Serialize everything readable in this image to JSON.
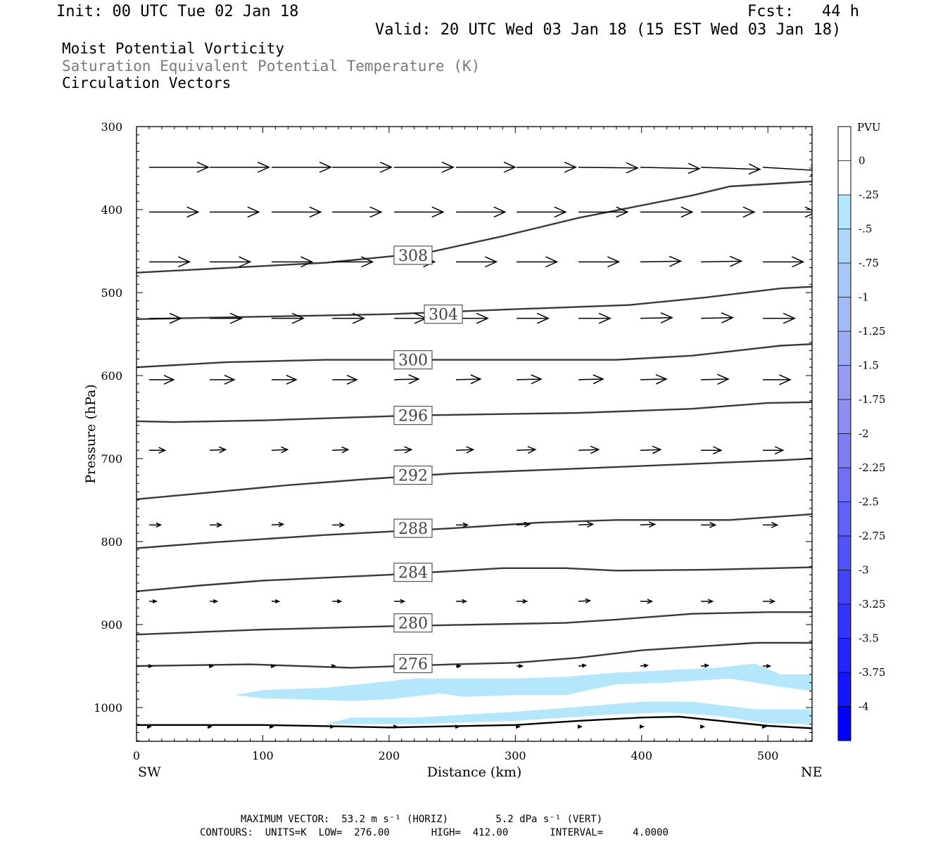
{
  "header": {
    "init": "Init: 00 UTC Tue 02 Jan 18",
    "fcst": "Fcst:   44 h",
    "valid": "Valid: 20 UTC Wed 03 Jan 18 (15 EST Wed 03 Jan 18)"
  },
  "fields": [
    {
      "label": "Moist Potential Vorticity",
      "color": "#000000"
    },
    {
      "label": "Saturation Equivalent Potential Temperature (K)",
      "color": "#7a7a7a"
    },
    {
      "label": "Circulation Vectors",
      "color": "#000000"
    }
  ],
  "footer": {
    "max_vector": "MAXIMUM VECTOR:  53.2 m s⁻¹ (HORIZ)        5.2 dPa s⁻¹ (VERT)",
    "contours": "CONTOURS:  UNITS=K  LOW=  276.00       HIGH=  412.00       INTERVAL=     4.0000"
  },
  "chart_data": {
    "type": "cross-section",
    "xlabel": "Distance (km)",
    "ylabel": "Pressure (hPa)",
    "xlim": [
      0,
      535
    ],
    "ylim": [
      1040,
      300
    ],
    "x_ticks": [
      "0",
      "100",
      "200",
      "300",
      "400",
      "500"
    ],
    "y_ticks": [
      "300",
      "400",
      "500",
      "600",
      "700",
      "800",
      "900",
      "1000"
    ],
    "x_end_labels": {
      "left": "SW",
      "right": "NE"
    },
    "colorbar": {
      "title": "PVU",
      "labels": [
        "0",
        "-.25",
        "-.5",
        "-.75",
        "-1",
        "-1.25",
        "-1.5",
        "-1.75",
        "-2",
        "-2.25",
        "-2.5",
        "-2.75",
        "-3",
        "-3.25",
        "-3.5",
        "-3.75",
        "-4"
      ],
      "colors": [
        "#ffffff",
        "#ffffff",
        "#b4e6fc",
        "#aed7fa",
        "#a8c9f8",
        "#a2baf6",
        "#9cabf4",
        "#969cf2",
        "#8e8ef2",
        "#7f7ff4",
        "#7070f5",
        "#6161f6",
        "#5252f8",
        "#4343f9",
        "#3434fa",
        "#2525fb",
        "#1616fd",
        "#0000ff"
      ]
    },
    "theta_es_contours": [
      {
        "level": "308",
        "label_at": [
          219,
          455
        ],
        "points": [
          [
            0,
            476
          ],
          [
            150,
            464
          ],
          [
            230,
            452
          ],
          [
            290,
            432
          ],
          [
            350,
            410
          ],
          [
            440,
            383
          ],
          [
            470,
            372
          ],
          [
            535,
            366
          ]
        ]
      },
      {
        "level": "304",
        "label_at": [
          243,
          526
        ],
        "points": [
          [
            0,
            532
          ],
          [
            100,
            529
          ],
          [
            200,
            526
          ],
          [
            300,
            520
          ],
          [
            390,
            515
          ],
          [
            450,
            506
          ],
          [
            510,
            495
          ],
          [
            535,
            493
          ]
        ]
      },
      {
        "level": "300",
        "label_at": [
          219,
          581
        ],
        "points": [
          [
            0,
            590
          ],
          [
            70,
            584
          ],
          [
            150,
            581
          ],
          [
            250,
            581
          ],
          [
            380,
            581
          ],
          [
            440,
            576
          ],
          [
            510,
            564
          ],
          [
            535,
            562
          ]
        ]
      },
      {
        "level": "296",
        "label_at": [
          219,
          648
        ],
        "points": [
          [
            0,
            655
          ],
          [
            30,
            656
          ],
          [
            100,
            654
          ],
          [
            220,
            648
          ],
          [
            350,
            645
          ],
          [
            440,
            640
          ],
          [
            500,
            633
          ],
          [
            535,
            632
          ]
        ]
      },
      {
        "level": "292",
        "label_at": [
          219,
          720
        ],
        "points": [
          [
            0,
            749
          ],
          [
            50,
            742
          ],
          [
            120,
            732
          ],
          [
            180,
            725
          ],
          [
            250,
            718
          ],
          [
            350,
            712
          ],
          [
            430,
            707
          ],
          [
            510,
            702
          ],
          [
            535,
            700
          ]
        ]
      },
      {
        "level": "288",
        "label_at": [
          219,
          784
        ],
        "points": [
          [
            0,
            808
          ],
          [
            60,
            801
          ],
          [
            150,
            792
          ],
          [
            250,
            784
          ],
          [
            320,
            777
          ],
          [
            380,
            774
          ],
          [
            470,
            774
          ],
          [
            535,
            767
          ]
        ]
      },
      {
        "level": "284",
        "label_at": [
          219,
          837
        ],
        "points": [
          [
            0,
            860
          ],
          [
            50,
            853
          ],
          [
            100,
            847
          ],
          [
            200,
            840
          ],
          [
            290,
            832
          ],
          [
            340,
            832
          ],
          [
            380,
            835
          ],
          [
            450,
            834
          ],
          [
            535,
            831
          ]
        ]
      },
      {
        "level": "280",
        "label_at": [
          219,
          898
        ],
        "points": [
          [
            0,
            912
          ],
          [
            100,
            906
          ],
          [
            200,
            902
          ],
          [
            340,
            898
          ],
          [
            380,
            894
          ],
          [
            440,
            887
          ],
          [
            500,
            885
          ],
          [
            535,
            885
          ]
        ]
      },
      {
        "level": "276",
        "label_at": [
          219,
          947
        ],
        "points": [
          [
            0,
            950
          ],
          [
            90,
            948
          ],
          [
            170,
            952
          ],
          [
            250,
            948
          ],
          [
            300,
            946
          ],
          [
            350,
            940
          ],
          [
            400,
            931
          ],
          [
            450,
            926
          ],
          [
            490,
            922
          ],
          [
            535,
            922
          ]
        ]
      },
      {
        "level": "",
        "label_at": null,
        "points": [
          [
            0,
            1021
          ],
          [
            100,
            1021
          ],
          [
            170,
            1023
          ],
          [
            200,
            1024
          ],
          [
            300,
            1021
          ],
          [
            350,
            1016
          ],
          [
            400,
            1012
          ],
          [
            430,
            1011
          ],
          [
            500,
            1022
          ],
          [
            535,
            1025
          ]
        ]
      }
    ],
    "mpv_negative_regions": [
      {
        "value": "-.25",
        "points": [
          [
            78,
            985
          ],
          [
            100,
            979
          ],
          [
            150,
            976
          ],
          [
            220,
            965
          ],
          [
            300,
            965
          ],
          [
            340,
            963
          ],
          [
            380,
            958
          ],
          [
            420,
            955
          ],
          [
            460,
            952
          ],
          [
            490,
            947
          ],
          [
            510,
            960
          ],
          [
            535,
            960
          ],
          [
            535,
            980
          ],
          [
            510,
            975
          ],
          [
            470,
            965
          ],
          [
            420,
            970
          ],
          [
            380,
            972
          ],
          [
            340,
            985
          ],
          [
            300,
            985
          ],
          [
            260,
            987
          ],
          [
            240,
            983
          ],
          [
            200,
            990
          ],
          [
            170,
            992
          ],
          [
            130,
            990
          ],
          [
            100,
            989
          ]
        ]
      },
      {
        "value": "-.25",
        "points": [
          [
            150,
            1020
          ],
          [
            170,
            1012
          ],
          [
            220,
            1012
          ],
          [
            300,
            1005
          ],
          [
            360,
            998
          ],
          [
            400,
            993
          ],
          [
            440,
            993
          ],
          [
            490,
            1002
          ],
          [
            535,
            1002
          ],
          [
            535,
            1020
          ],
          [
            500,
            1019
          ],
          [
            460,
            1010
          ],
          [
            420,
            1006
          ],
          [
            380,
            1008
          ],
          [
            340,
            1012
          ],
          [
            300,
            1016
          ],
          [
            220,
            1020
          ]
        ]
      }
    ],
    "circulation_vectors": {
      "x": [
        10,
        58,
        107,
        155,
        204,
        253,
        301,
        350,
        399,
        447,
        496
      ],
      "rows": [
        {
          "pressure": 349,
          "u": [
            41,
            41,
            41,
            41,
            41,
            41,
            41,
            41,
            41,
            41,
            41
          ],
          "w": [
            0,
            0,
            0,
            0,
            0,
            0,
            0,
            1,
            2,
            3,
            5
          ]
        },
        {
          "pressure": 403,
          "u": [
            34,
            34,
            34,
            34,
            34,
            34,
            34,
            34,
            36,
            37,
            37
          ],
          "w": [
            0,
            0,
            0,
            0,
            0,
            0,
            0,
            0,
            0,
            0,
            0
          ]
        },
        {
          "pressure": 463,
          "u": [
            28,
            28,
            28,
            28,
            28,
            28,
            28,
            28,
            28,
            28,
            28
          ],
          "w": [
            0,
            0,
            0,
            0,
            0,
            0,
            0,
            0,
            -1,
            -1,
            0
          ]
        },
        {
          "pressure": 531,
          "u": [
            22,
            22,
            22,
            22,
            22,
            22,
            22,
            22,
            22,
            22,
            22
          ],
          "w": [
            0,
            0,
            0,
            0,
            0,
            0,
            0,
            0,
            -1,
            -1,
            0
          ]
        },
        {
          "pressure": 605,
          "u": [
            17,
            17,
            17,
            17,
            17,
            17,
            17,
            17,
            18,
            19,
            19
          ],
          "w": [
            0,
            0,
            0,
            0,
            -1,
            -1,
            -1,
            -1,
            -1,
            -1,
            0
          ]
        },
        {
          "pressure": 690,
          "u": [
            11,
            11,
            11,
            11,
            12,
            12,
            13,
            14,
            14,
            14,
            14
          ],
          "w": [
            0,
            -1,
            -1,
            -1,
            -1,
            -1,
            -1,
            -1,
            -1,
            0,
            0
          ]
        },
        {
          "pressure": 780,
          "u": [
            8,
            8,
            8,
            8,
            8,
            8,
            9,
            10,
            10,
            10,
            10
          ],
          "w": [
            0,
            0,
            -1,
            0,
            0,
            0,
            -1,
            -1,
            -1,
            0,
            0
          ]
        },
        {
          "pressure": 872,
          "u": [
            5,
            5,
            5,
            6,
            7,
            7,
            7,
            8,
            8,
            8,
            8
          ],
          "w": [
            0,
            0,
            0,
            0,
            0,
            0,
            0,
            -1,
            0,
            0,
            0
          ]
        },
        {
          "pressure": 950,
          "u": [
            2,
            2,
            2,
            2,
            2,
            3,
            4,
            5,
            5,
            5,
            5
          ],
          "w": [
            0,
            0,
            0,
            0,
            0,
            0,
            0,
            -1,
            -1,
            -1,
            0
          ]
        },
        {
          "pressure": 1023,
          "u": [
            1,
            1,
            1,
            1,
            2,
            2,
            2,
            2,
            2,
            2,
            2
          ],
          "w": [
            0,
            0,
            0,
            0,
            0,
            0,
            0,
            0,
            0,
            0,
            0
          ]
        }
      ]
    }
  }
}
